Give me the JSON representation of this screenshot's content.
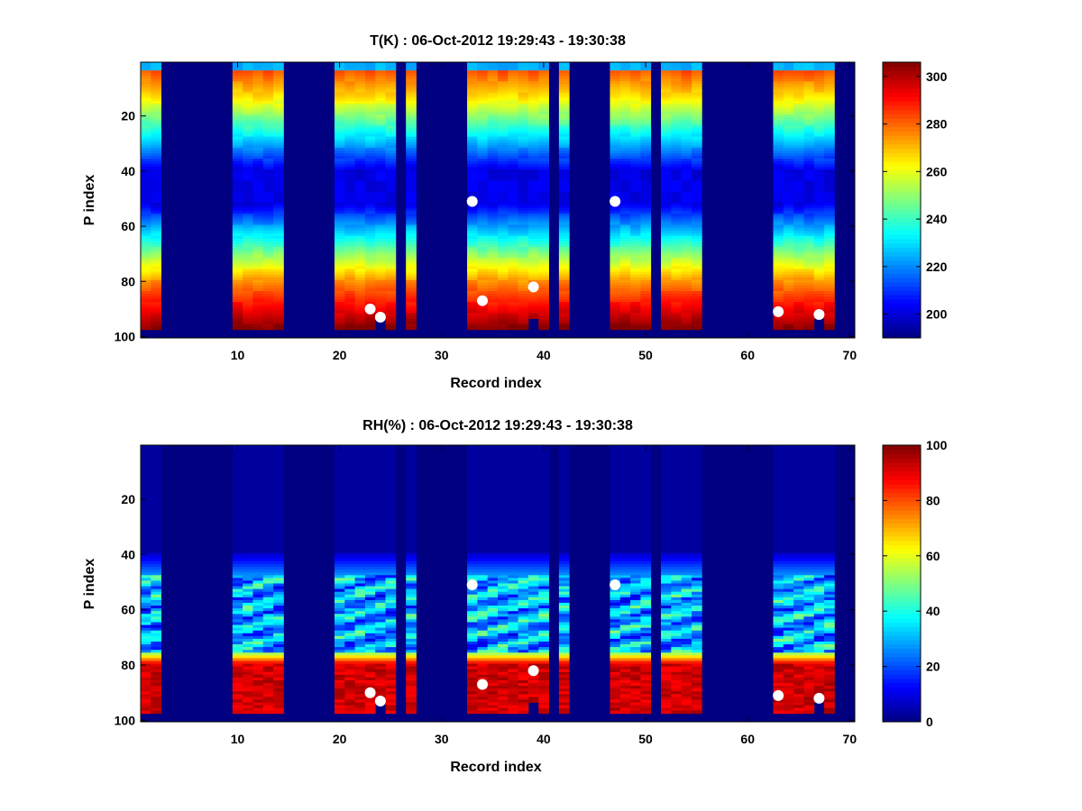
{
  "colors": {
    "background": "#ffffff",
    "axis": "#000000",
    "colormap": "jet",
    "marker": "#ffffff"
  },
  "chart_data": [
    {
      "type": "heatmap",
      "id": "temperature",
      "title": "T(K) : 06-Oct-2012 19:29:43 - 19:30:38",
      "xlabel": "Record index",
      "ylabel": "P index",
      "xlim": [
        0.5,
        70.5
      ],
      "ylim": [
        0.5,
        100.5
      ],
      "y_reversed": true,
      "xticks": [
        10,
        20,
        30,
        40,
        50,
        60,
        70
      ],
      "yticks": [
        20,
        40,
        60,
        80,
        100
      ],
      "clim": [
        190,
        306
      ],
      "colorbar_ticks": [
        200,
        220,
        240,
        260,
        280,
        300
      ],
      "valid_records": [
        1,
        2,
        10,
        11,
        12,
        13,
        14,
        20,
        21,
        22,
        23,
        24,
        25,
        27,
        33,
        34,
        35,
        36,
        37,
        38,
        39,
        40,
        42,
        47,
        48,
        49,
        50,
        52,
        53,
        54,
        55,
        63,
        64,
        65,
        66,
        67,
        68
      ],
      "profile_rows": [
        1,
        97
      ],
      "surface_levels": {
        "24": 93,
        "39": 94,
        "67": 94
      },
      "markers": [
        {
          "x": 23,
          "y": 90
        },
        {
          "x": 24,
          "y": 93
        },
        {
          "x": 33,
          "y": 51
        },
        {
          "x": 34,
          "y": 87
        },
        {
          "x": 39,
          "y": 82
        },
        {
          "x": 47,
          "y": 51
        },
        {
          "x": 63,
          "y": 91
        },
        {
          "x": 67,
          "y": 92
        }
      ]
    },
    {
      "type": "heatmap",
      "id": "humidity",
      "title": "RH(%) : 06-Oct-2012 19:29:43 - 19:30:38",
      "xlabel": "Record index",
      "ylabel": "P index",
      "xlim": [
        0.5,
        70.5
      ],
      "ylim": [
        0.5,
        100.5
      ],
      "y_reversed": true,
      "xticks": [
        10,
        20,
        30,
        40,
        50,
        60,
        70
      ],
      "yticks": [
        20,
        40,
        60,
        80,
        100
      ],
      "clim": [
        0,
        100
      ],
      "colorbar_ticks": [
        0,
        20,
        40,
        60,
        80,
        100
      ],
      "valid_records": [
        1,
        2,
        10,
        11,
        12,
        13,
        14,
        20,
        21,
        22,
        23,
        24,
        25,
        27,
        33,
        34,
        35,
        36,
        37,
        38,
        39,
        40,
        42,
        47,
        48,
        49,
        50,
        52,
        53,
        54,
        55,
        63,
        64,
        65,
        66,
        67,
        68
      ],
      "profile_rows": [
        1,
        97
      ],
      "surface_levels": {
        "24": 93,
        "39": 94,
        "67": 94
      },
      "markers": [
        {
          "x": 23,
          "y": 90
        },
        {
          "x": 24,
          "y": 93
        },
        {
          "x": 33,
          "y": 51
        },
        {
          "x": 34,
          "y": 87
        },
        {
          "x": 39,
          "y": 82
        },
        {
          "x": 47,
          "y": 51
        },
        {
          "x": 63,
          "y": 91
        },
        {
          "x": 67,
          "y": 92
        }
      ]
    }
  ]
}
